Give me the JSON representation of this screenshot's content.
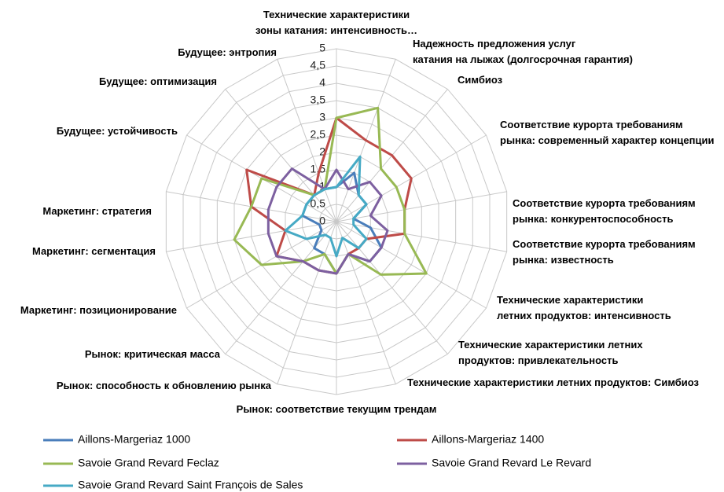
{
  "chart_data": {
    "type": "radar",
    "categories": [
      "Технические характеристики\nзоны катания: интенсивность…",
      "Надежность предложения услуг\nкатания на лыжах (долгосрочная гарантия)",
      "Симбиоз",
      "Соответствие курорта требованиям\nрынка: современный характер концепции",
      "Соответствие курорта требованиям\nрынка: конкурентоспособность",
      "Соответствие курорта требованиям\nрынка: известность",
      "Технические характеристики\nлетних продуктов: интенсивность",
      "Технические характеристики летних\nпродуктов: привлекательность",
      "Технические характеристики летних продуктов: Симбиоз",
      "Рынок: соответствие текущим трендам",
      "Рынок: способность к обновлению рынка",
      "Рынок: критическая масса",
      "Маркетинг: позиционирование",
      "Маркетинг: сегментация",
      "Маркетинг: стратегия",
      "Будущее: устойчивость",
      "Будущее: оптимизация",
      "Будущее: энтропия"
    ],
    "series": [
      {
        "name": "Aillons-Margeriaz 1000",
        "color": "#4a7ebb",
        "values": [
          1,
          1.5,
          1,
          1,
          0.5,
          1,
          1.5,
          1.5,
          1,
          1.5,
          1,
          1,
          0.5,
          0.5,
          1,
          1,
          1,
          1
        ]
      },
      {
        "name": "Aillons-Margeriaz 1400",
        "color": "#be4b48",
        "values": [
          3,
          2.5,
          2.5,
          2.5,
          2,
          2,
          1,
          1,
          1,
          1.5,
          1.5,
          1.5,
          2,
          1.5,
          2.5,
          3,
          1,
          1.5
        ]
      },
      {
        "name": "Savoie Grand Revard Feclaz",
        "color": "#98b954",
        "values": [
          3,
          3.5,
          2,
          2,
          2,
          2,
          3,
          2,
          1,
          1.5,
          1,
          1.5,
          2.5,
          3,
          2.5,
          2.5,
          1,
          1
        ]
      },
      {
        "name": "Savoie Grand Revard Le Revard",
        "color": "#7d60a0",
        "values": [
          1.5,
          1,
          1.5,
          1.5,
          1,
          1.5,
          1.5,
          1.5,
          1,
          1.5,
          1.5,
          1.5,
          2,
          2,
          2,
          2,
          2,
          1
        ]
      },
      {
        "name": "Savoie Grand Revard Saint François de Sales",
        "color": "#46aac5",
        "values": [
          1,
          2,
          1,
          1,
          0.5,
          0.5,
          1,
          1,
          0.5,
          1,
          0.5,
          0.5,
          1,
          1.5,
          1,
          1,
          1,
          1
        ]
      }
    ],
    "rlim": [
      0,
      5
    ],
    "rticks": [
      0,
      {
        "value": 0.5,
        "label": "0,5"
      },
      1,
      {
        "value": 1.5,
        "label": "1,5"
      },
      2,
      {
        "value": 2.5,
        "label": "2,5"
      },
      3,
      {
        "value": 3.5,
        "label": "3,5"
      },
      4,
      {
        "value": 4.5,
        "label": "4,5"
      },
      5
    ],
    "grid": true
  }
}
